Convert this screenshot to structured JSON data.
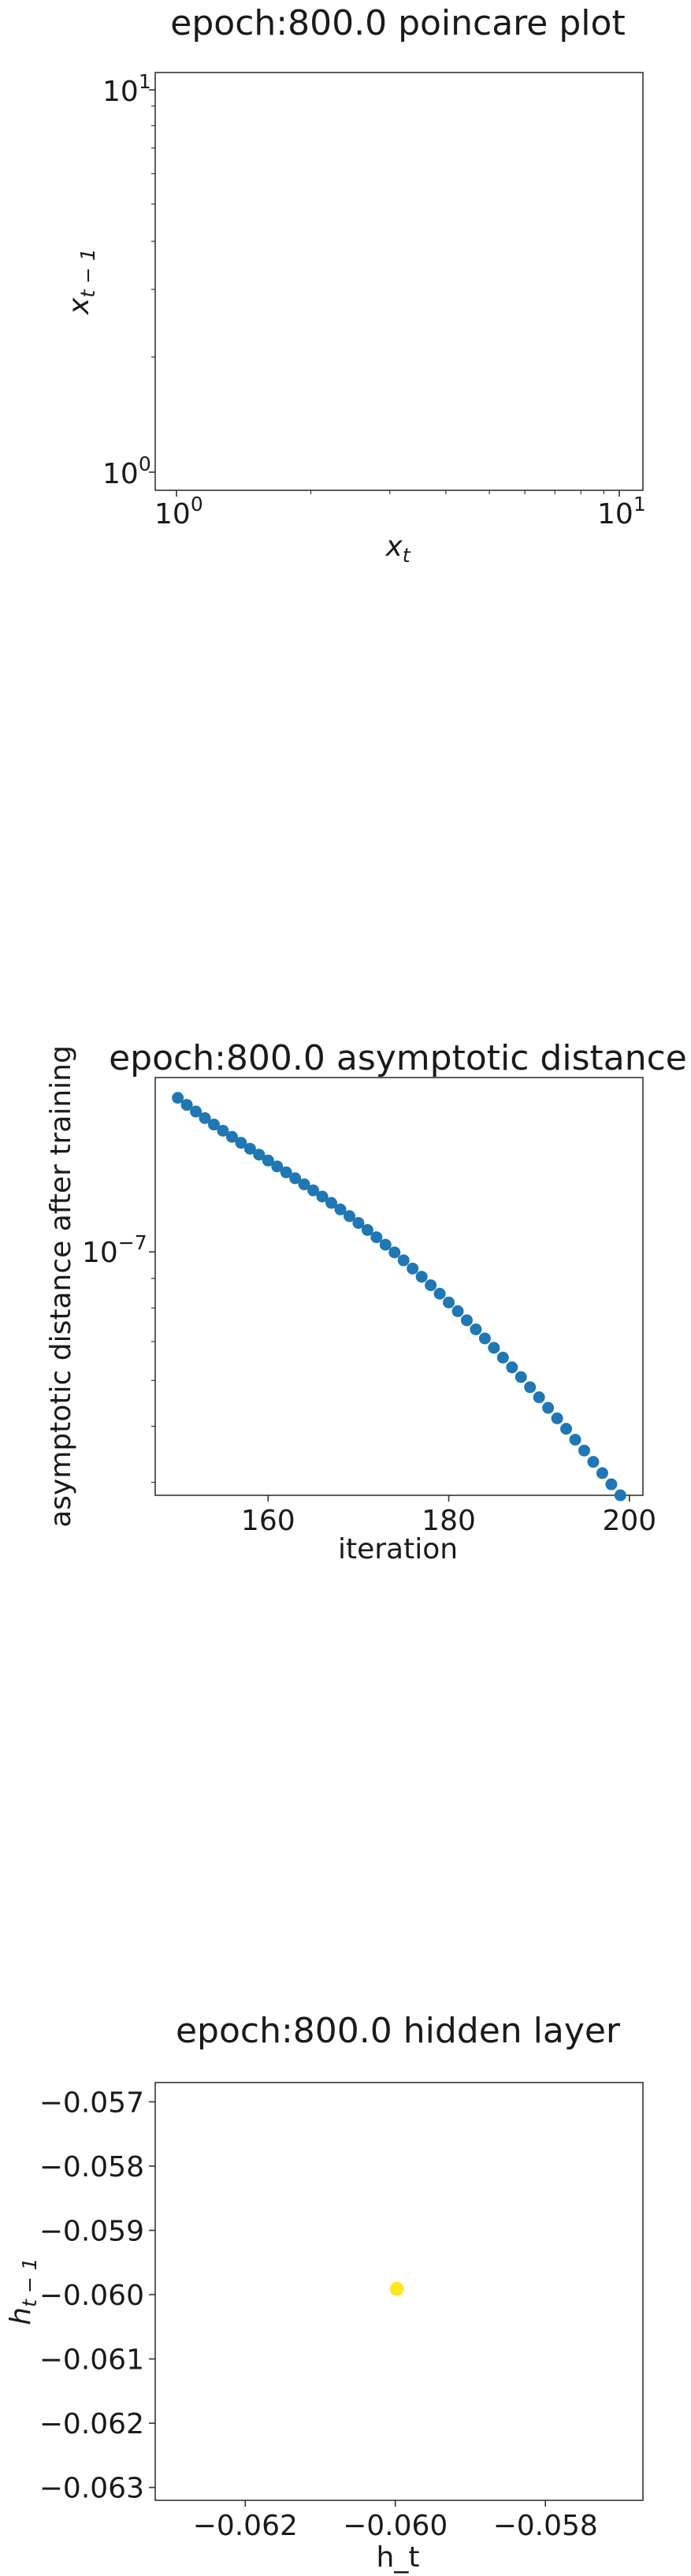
{
  "chart_data": [
    {
      "type": "scatter",
      "title": "epoch:800.0 poincare plot",
      "xlabel_base": "x",
      "xlabel_sub": "t",
      "ylabel_base": "x",
      "ylabel_sub": "t − 1",
      "x_scale": "log",
      "y_scale": "log",
      "xlim": [
        0.9,
        11
      ],
      "ylim": [
        0.9,
        11
      ],
      "x_ticks": [
        {
          "value": 1,
          "base": "10",
          "exp": "0"
        },
        {
          "value": 10,
          "base": "10",
          "exp": "1"
        }
      ],
      "y_ticks": [
        {
          "value": 1,
          "base": "10",
          "exp": "0"
        },
        {
          "value": 10,
          "base": "10",
          "exp": "1"
        }
      ],
      "points": []
    },
    {
      "type": "scatter",
      "title": "epoch:800.0 asymptotic distance",
      "xlabel": "iteration",
      "ylabel": "asymptotic distance after training",
      "y_scale": "log",
      "xlim": [
        147.5,
        201.5
      ],
      "ylim": [
        3.8e-08,
        2e-07
      ],
      "x_ticks": [
        160,
        180,
        200
      ],
      "y_ticks": [
        {
          "value": 1e-07,
          "base": "10",
          "exp": "−7"
        }
      ],
      "color": "#1f77b4",
      "x": [
        150,
        151,
        152,
        153,
        154,
        155,
        156,
        157,
        158,
        159,
        160,
        161,
        162,
        163,
        164,
        165,
        166,
        167,
        168,
        169,
        170,
        171,
        172,
        173,
        174,
        175,
        176,
        177,
        178,
        179,
        180,
        181,
        182,
        183,
        184,
        185,
        186,
        187,
        188,
        189,
        190,
        191,
        192,
        193,
        194,
        195,
        196,
        197,
        198,
        199
      ],
      "y": [
        1.845e-07,
        1.794e-07,
        1.747e-07,
        1.702e-07,
        1.659e-07,
        1.619e-07,
        1.58e-07,
        1.543e-07,
        1.507e-07,
        1.472e-07,
        1.438e-07,
        1.405e-07,
        1.372e-07,
        1.34e-07,
        1.308e-07,
        1.277e-07,
        1.246e-07,
        1.215e-07,
        1.184e-07,
        1.153e-07,
        1.122e-07,
        1.091e-07,
        1.06e-07,
        1.029e-07,
        9.98e-08,
        9.67e-08,
        9.36e-08,
        9.06e-08,
        8.76e-08,
        8.47e-08,
        8.18e-08,
        7.9e-08,
        7.62e-08,
        7.35e-08,
        7.09e-08,
        6.83e-08,
        6.57e-08,
        6.32e-08,
        6.08e-08,
        5.84e-08,
        5.61e-08,
        5.38e-08,
        5.16e-08,
        4.95e-08,
        4.74e-08,
        4.54e-08,
        4.34e-08,
        4.15e-08,
        3.97e-08,
        3.8e-08
      ]
    },
    {
      "type": "scatter",
      "title": "epoch:800.0 hidden layer",
      "xlabel": "h_t",
      "ylabel_base": "h",
      "ylabel_sub": "t − 1",
      "xlim": [
        -0.0632,
        -0.0567
      ],
      "ylim": [
        -0.0632,
        -0.0567
      ],
      "x_ticks": [
        -0.062,
        -0.06,
        -0.058
      ],
      "x_tick_labels": [
        "−0.062",
        "−0.060",
        "−0.058"
      ],
      "y_ticks": [
        -0.057,
        -0.058,
        -0.059,
        -0.06,
        -0.061,
        -0.062,
        -0.063
      ],
      "y_tick_labels": [
        "−0.057",
        "−0.058",
        "−0.059",
        "−0.060",
        "−0.061",
        "−0.062",
        "−0.063"
      ],
      "color": "#fde725",
      "x": [
        -0.05998
      ],
      "y": [
        -0.05991
      ]
    }
  ]
}
